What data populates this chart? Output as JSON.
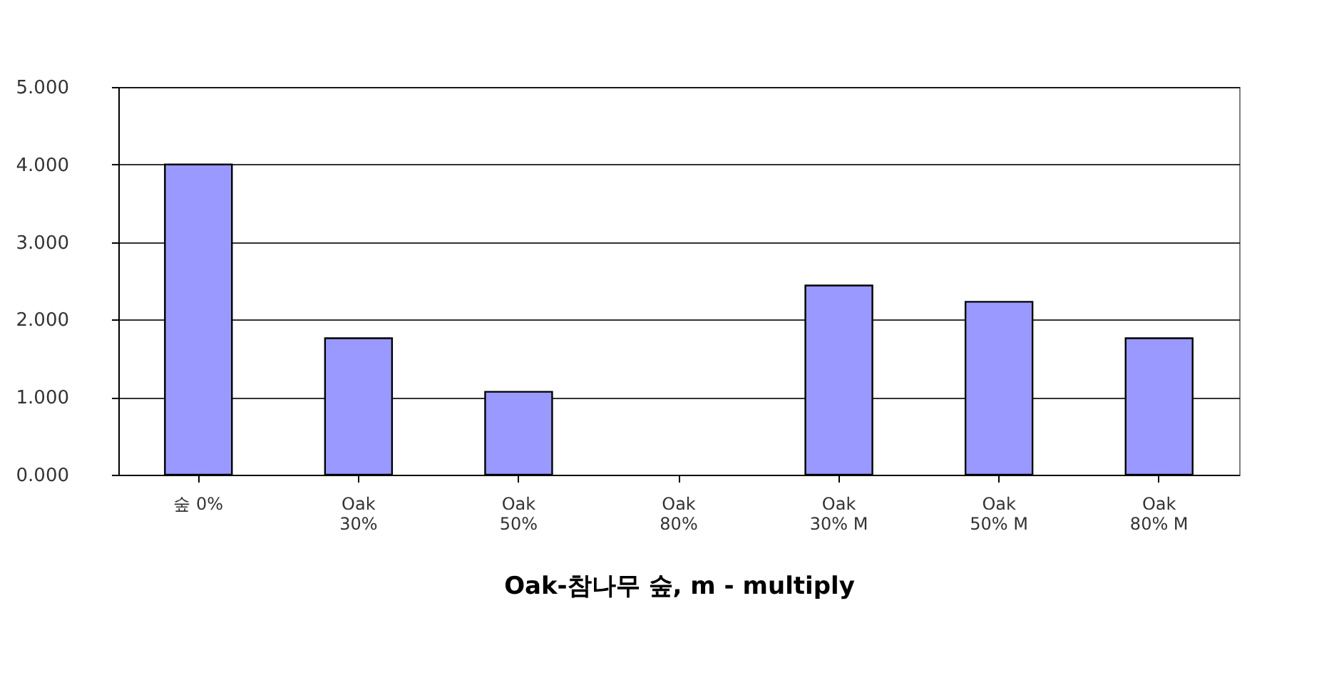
{
  "chart_data": {
    "type": "bar",
    "xlabel": "Oak-참나무 숲, m - multiply",
    "categories": [
      "숲 0%",
      "Oak\n30%",
      "Oak\n50%",
      "Oak\n80%",
      "Oak\n30% M",
      "Oak\n50% M",
      "Oak\n80% M"
    ],
    "values": [
      4.0,
      1.76,
      1.07,
      null,
      2.44,
      2.23,
      1.76
    ],
    "color": "#9999ff",
    "ylim": [
      0,
      5
    ],
    "yticks": [
      {
        "value": 0,
        "label": "0.000"
      },
      {
        "value": 1,
        "label": "1.000"
      },
      {
        "value": 2,
        "label": "2.000"
      },
      {
        "value": 3,
        "label": "3.000"
      },
      {
        "value": 4,
        "label": "4.000"
      },
      {
        "value": 5,
        "label": "5.000"
      }
    ],
    "grid": "y"
  }
}
